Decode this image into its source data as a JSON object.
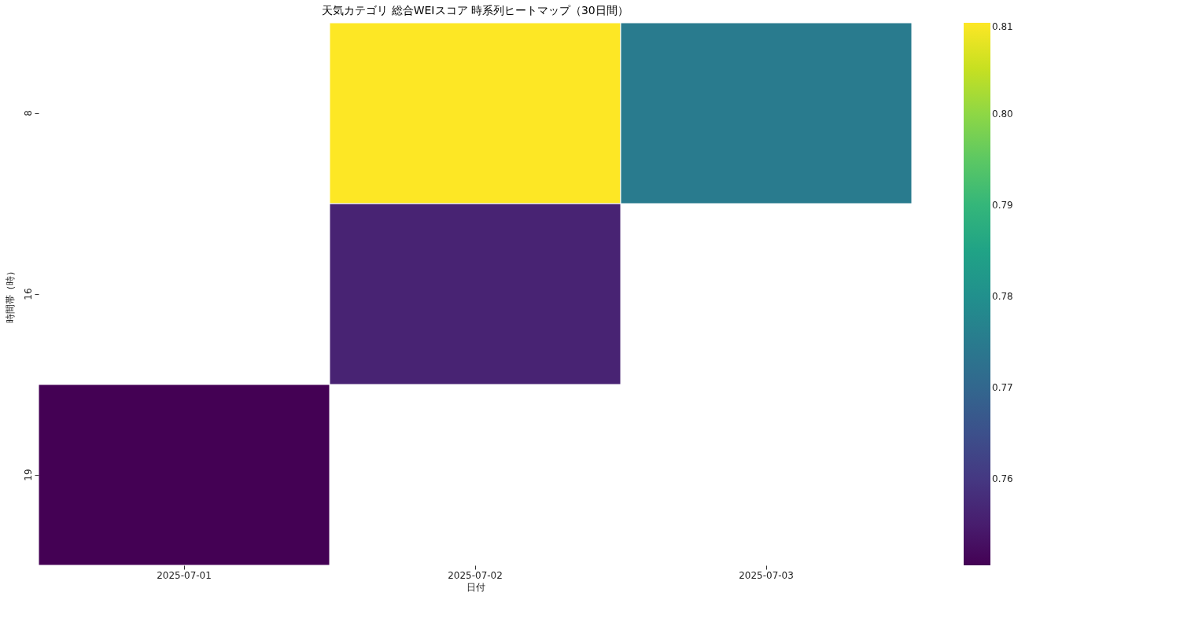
{
  "chart_data": {
    "type": "heatmap",
    "title": "天気カテゴリ 総合WEIスコア 時系列ヒートマップ（30日間）",
    "xlabel": "日付",
    "ylabel": "時間帯（時）",
    "categories": [
      "2025-07-01",
      "2025-07-02",
      "2025-07-03"
    ],
    "y_categories": [
      "8",
      "16",
      "19"
    ],
    "cells": [
      [
        null,
        0.81,
        0.775
      ],
      [
        null,
        0.756,
        null
      ],
      [
        0.7505,
        null,
        null
      ]
    ],
    "clim": [
      0.7505,
      0.81
    ],
    "cticks": [
      0.76,
      0.77,
      0.78,
      0.79,
      {
        "value": 0.8,
        "label": "0.80"
      },
      0.81
    ],
    "grid": false
  }
}
